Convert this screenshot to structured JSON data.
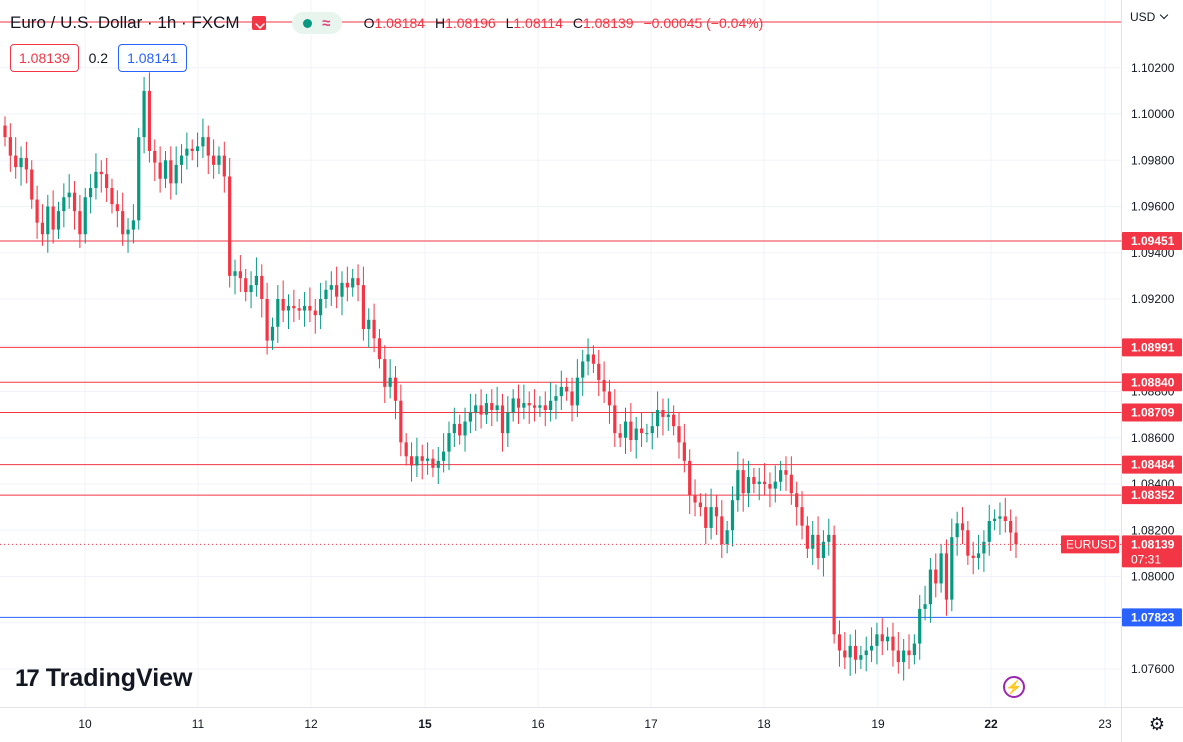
{
  "header": {
    "symbol_title": "Euro / U.S. Dollar · 1h · FXCM",
    "ohlc": {
      "o_label": "O",
      "o_value": "1.08184",
      "h_label": "H",
      "h_value": "1.08196",
      "l_label": "L",
      "l_value": "1.08114",
      "c_label": "C",
      "c_value": "1.08139",
      "change": "−0.00045 (−0.04%)"
    }
  },
  "trade": {
    "sell_price": "1.08139",
    "spread": "0.2",
    "buy_price": "1.08141"
  },
  "currency_selector": {
    "label": "USD"
  },
  "logo": {
    "mark": "17",
    "text": "TradingView"
  },
  "icons": {
    "flag": "flag-icon",
    "market_status": "market-open-dot",
    "wave": "wave-icon",
    "bolt": "lightning-icon",
    "settings": "gear-icon"
  },
  "colors": {
    "up": "#089981",
    "down": "#f23645",
    "resistance": "#f23645",
    "support": "#2962ff",
    "grid": "#f0f3fa"
  },
  "chart_data": {
    "type": "candlestick",
    "title": "Euro / U.S. Dollar · 1h · FXCM",
    "x_tick_labels": [
      "10",
      "11",
      "12",
      "15",
      "16",
      "17",
      "18",
      "19",
      "22",
      "23"
    ],
    "x_ticks_bold": [
      "15",
      "22"
    ],
    "y_ticks": [
      "1.10200",
      "1.10000",
      "1.09800",
      "1.09600",
      "1.09400",
      "1.09200",
      "1.08800",
      "1.08600",
      "1.08400",
      "1.08200",
      "1.08000",
      "1.07600"
    ],
    "ylim": [
      1.0744,
      1.1032
    ],
    "grid": true,
    "horizontal_lines": [
      {
        "value": 1.09451,
        "label": "1.09451",
        "kind": "resistance"
      },
      {
        "value": 1.08991,
        "label": "1.08991",
        "kind": "resistance"
      },
      {
        "value": 1.0884,
        "label": "1.08840",
        "kind": "resistance"
      },
      {
        "value": 1.08709,
        "label": "1.08709",
        "kind": "resistance"
      },
      {
        "value": 1.08484,
        "label": "1.08484",
        "kind": "resistance"
      },
      {
        "value": 1.08352,
        "label": "1.08352",
        "kind": "resistance"
      },
      {
        "value": 1.07823,
        "label": "1.07823",
        "kind": "support"
      }
    ],
    "current_price": {
      "symbol": "EURUSD",
      "value": 1.08139,
      "label": "1.08139",
      "countdown": "07:31"
    },
    "series": [
      {
        "name": "EURUSD",
        "close": [
          1.099,
          1.0982,
          1.0977,
          1.0981,
          1.0976,
          1.0963,
          1.0953,
          1.0948,
          1.096,
          1.095,
          1.0958,
          1.0964,
          1.0966,
          1.0958,
          1.0948,
          1.0964,
          1.0968,
          1.0975,
          1.0974,
          1.0968,
          1.0961,
          1.0958,
          1.0948,
          1.095,
          1.0954,
          1.099,
          1.101,
          1.0984,
          1.0979,
          1.0972,
          1.098,
          1.097,
          1.0978,
          1.0982,
          1.0985,
          1.0984,
          1.0986,
          1.099,
          1.0982,
          1.0978,
          1.0982,
          1.0973,
          1.093,
          1.0932,
          1.0929,
          1.0923,
          1.0926,
          1.093,
          1.092,
          1.0902,
          1.0908,
          1.092,
          1.0915,
          1.0917,
          1.0916,
          1.0915,
          1.0917,
          1.0915,
          1.0913,
          1.092,
          1.0924,
          1.0926,
          1.0921,
          1.0927,
          1.0925,
          1.0929,
          1.0926,
          1.0907,
          1.0911,
          1.0903,
          1.0894,
          1.0882,
          1.0886,
          1.0876,
          1.0858,
          1.0852,
          1.0848,
          1.0852,
          1.085,
          1.0851,
          1.0847,
          1.085,
          1.0854,
          1.0862,
          1.0866,
          1.0861,
          1.0867,
          1.0871,
          1.0874,
          1.087,
          1.0875,
          1.0872,
          1.0874,
          1.0862,
          1.0871,
          1.0877,
          1.0873,
          1.0875,
          1.0874,
          1.0873,
          1.0874,
          1.0872,
          1.0876,
          1.0878,
          1.0882,
          1.088,
          1.0874,
          1.0886,
          1.0893,
          1.0896,
          1.0892,
          1.0885,
          1.088,
          1.0874,
          1.0862,
          1.086,
          1.0867,
          1.0859,
          1.0864,
          1.0862,
          1.0862,
          1.0865,
          1.0872,
          1.0869,
          1.087,
          1.0865,
          1.0858,
          1.085,
          1.0835,
          1.0832,
          1.083,
          1.0821,
          1.083,
          1.0826,
          1.0814,
          1.082,
          1.0833,
          1.0846,
          1.0836,
          1.0843,
          1.084,
          1.0841,
          1.084,
          1.0838,
          1.0841,
          1.0846,
          1.0844,
          1.0836,
          1.083,
          1.0822,
          1.0812,
          1.0818,
          1.0808,
          1.0815,
          1.0818,
          1.0775,
          1.0768,
          1.0765,
          1.077,
          1.0764,
          1.0766,
          1.0768,
          1.077,
          1.0775,
          1.0772,
          1.0774,
          1.0768,
          1.0763,
          1.0768,
          1.0766,
          1.0771,
          1.0786,
          1.0788,
          1.0803,
          1.0797,
          1.081,
          1.079,
          1.0817,
          1.0823,
          1.082,
          1.0809,
          1.0808,
          1.081,
          1.0815,
          1.0824,
          1.0825,
          1.0826,
          1.0824,
          1.0819,
          1.0814
        ]
      }
    ]
  }
}
